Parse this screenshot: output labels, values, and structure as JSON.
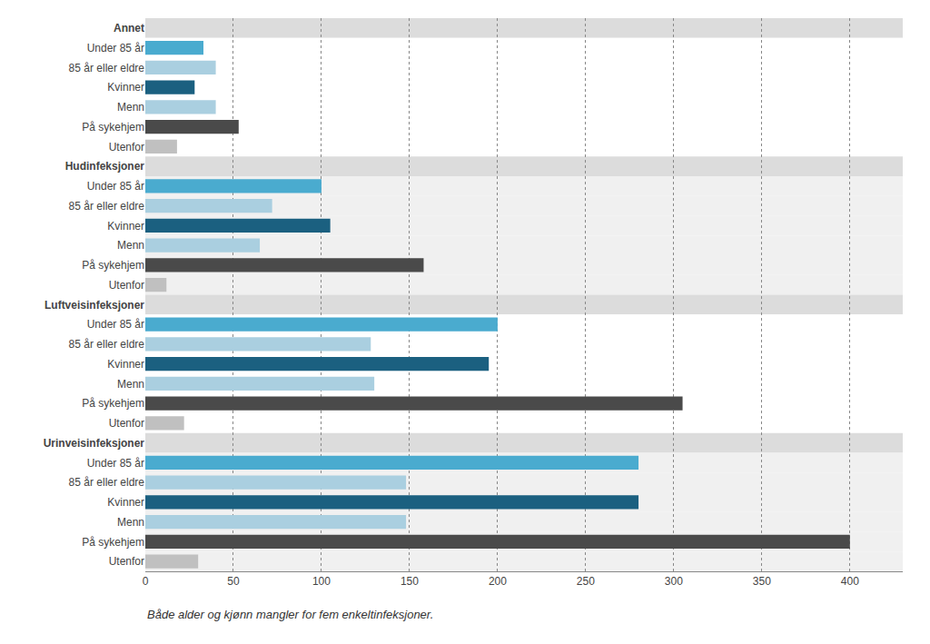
{
  "chart_data": {
    "type": "bar",
    "orientation": "horizontal",
    "categories": [
      "Annet",
      "Under 85 år",
      "85 år eller eldre",
      "Kvinner",
      "Menn",
      "På sykehjem",
      "Utenfor",
      "Hudinfeksjoner",
      "Under 85 år",
      "85 år eller eldre",
      "Kvinner",
      "Menn",
      "På sykehjem",
      "Utenfor",
      "Luftveisinfeksjoner",
      "Under 85 år",
      "85 år eller eldre",
      "Kvinner",
      "Menn",
      "På sykehjem",
      "Utenfor",
      "Urinveisinfeksjoner",
      "Under 85 år",
      "85 år eller eldre",
      "Kvinner",
      "Menn",
      "På sykehjem",
      "Utenfor"
    ],
    "values": [
      null,
      33,
      40,
      28,
      40,
      53,
      18,
      null,
      100,
      72,
      105,
      65,
      158,
      12,
      null,
      200,
      128,
      195,
      130,
      305,
      22,
      null,
      280,
      148,
      280,
      148,
      400,
      30
    ],
    "colors": [
      null,
      "#4AABCF",
      "#AACFE0",
      "#1B6080",
      "#AACFE0",
      "#4A4A4A",
      "#C0C0C0",
      null,
      "#4AABCF",
      "#AACFE0",
      "#1B6080",
      "#AACFE0",
      "#4A4A4A",
      "#C0C0C0",
      null,
      "#4AABCF",
      "#AACFE0",
      "#1B6080",
      "#AACFE0",
      "#4A4A4A",
      "#C0C0C0",
      null,
      "#4AABCF",
      "#AACFE0",
      "#1B6080",
      "#AACFE0",
      "#4A4A4A",
      "#C0C0C0"
    ],
    "xlim": [
      0,
      430
    ],
    "xticks": [
      0,
      50,
      100,
      150,
      200,
      250,
      300,
      350,
      400
    ],
    "grid": true,
    "annotations": [
      "Både alder og kjønn mangler for fem enkeltinfeksjoner."
    ]
  }
}
